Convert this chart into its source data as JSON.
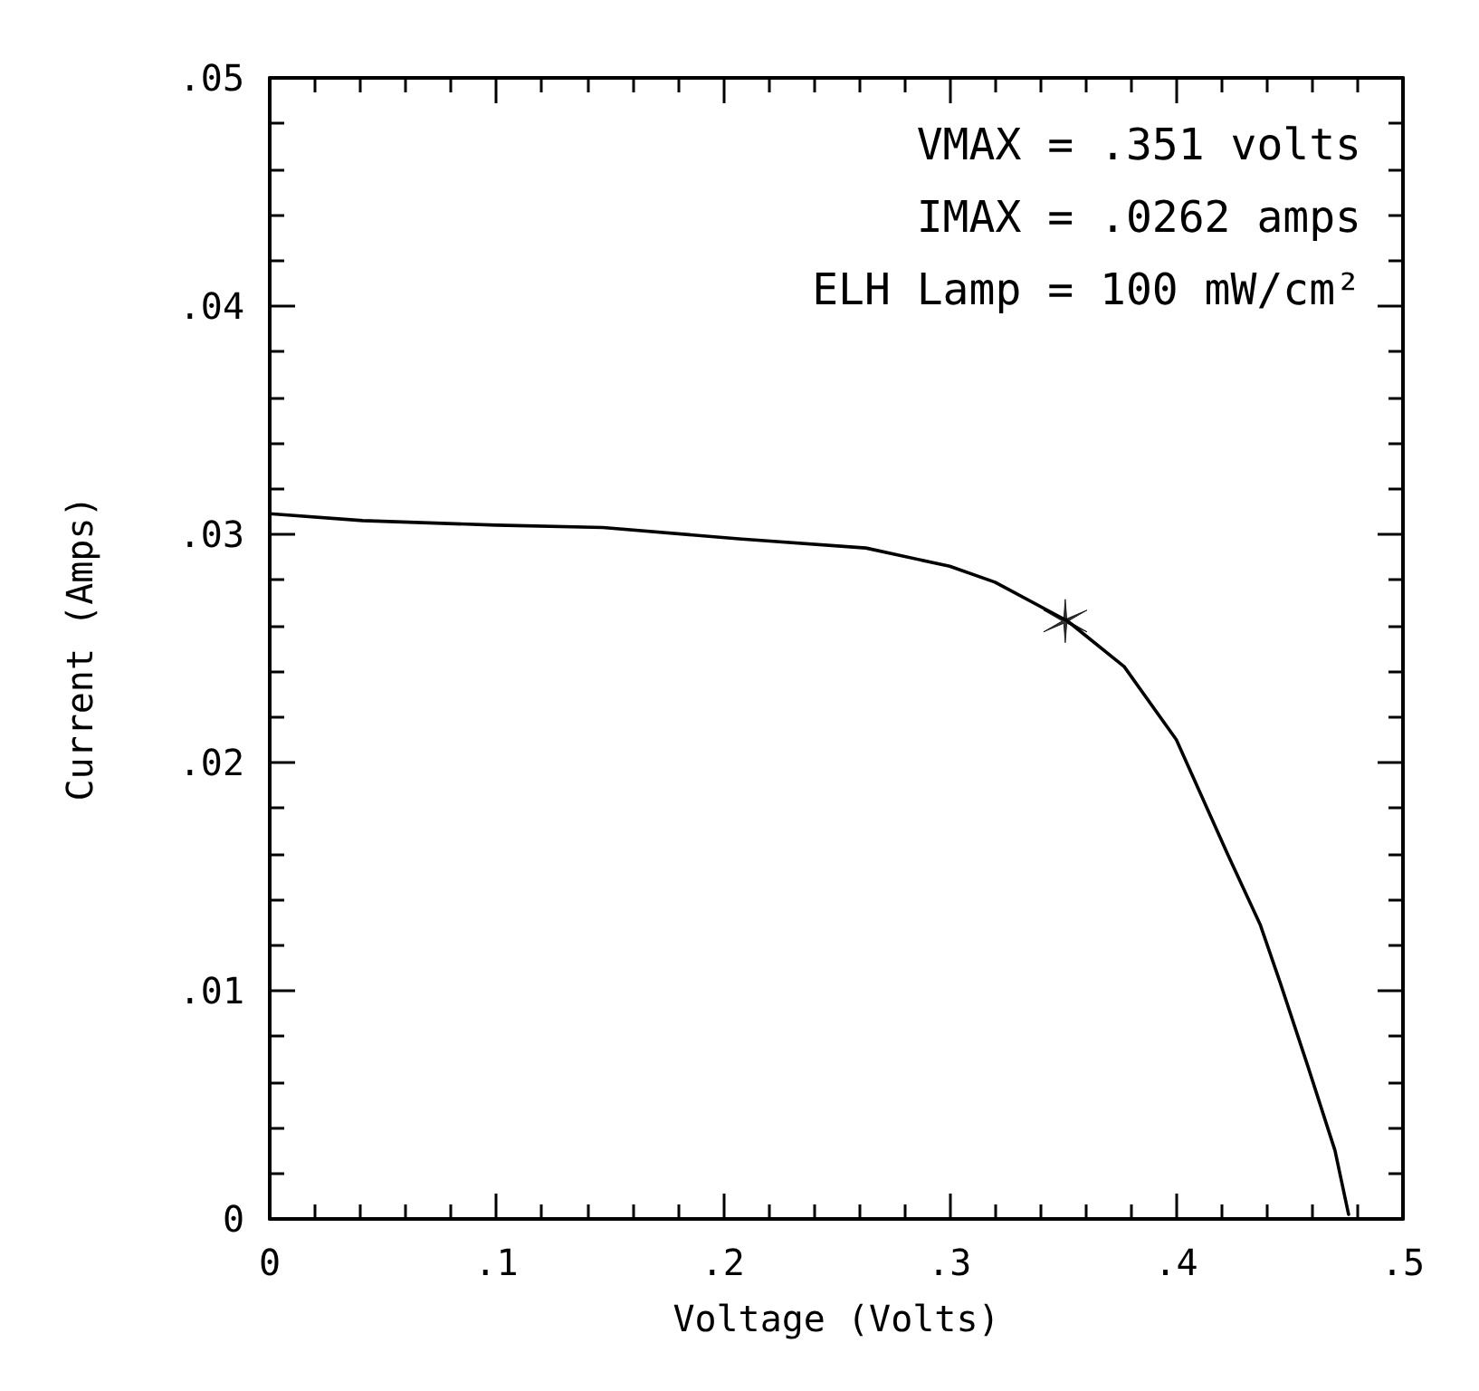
{
  "chart_data": {
    "type": "line",
    "xlabel": "Voltage (Volts)",
    "ylabel": "Current (Amps)",
    "annotations": [
      "VMAX = .351 volts",
      "IMAX = .0262 amps",
      "ELH Lamp = 100 mW/cm²"
    ],
    "series": [
      {
        "color": "#000000",
        "marker": "none",
        "x": [
          0,
          0.041,
          0.1,
          0.147,
          0.207,
          0.263,
          0.3,
          0.32,
          0.352,
          0.377,
          0.4,
          0.423,
          0.437,
          0.446,
          0.458,
          0.47,
          0.476
        ],
        "values": [
          0.0309,
          0.0306,
          0.0304,
          0.0303,
          0.0298,
          0.0294,
          0.0286,
          0.0279,
          0.0262,
          0.0242,
          0.021,
          0.0159,
          0.0129,
          0.0103,
          0.0067,
          0.003,
          0.0002
        ]
      },
      {
        "type": "scatter",
        "color": "#000000",
        "marker": "cross",
        "x": [
          0.351
        ],
        "values": [
          0.0262
        ]
      }
    ],
    "xlim": [
      0,
      0.5
    ],
    "ylim": [
      0,
      0.05
    ],
    "xticks": [
      {
        "value": 0,
        "label": "0"
      },
      {
        "value": 0.1,
        "label": ".1"
      },
      {
        "value": 0.2,
        "label": ".2"
      },
      {
        "value": 0.3,
        "label": ".3"
      },
      {
        "value": 0.4,
        "label": ".4"
      },
      {
        "value": 0.5,
        "label": ".5"
      }
    ],
    "yticks": [
      {
        "value": 0,
        "label": "0"
      },
      {
        "value": 0.01,
        "label": ".01"
      },
      {
        "value": 0.02,
        "label": ".02"
      },
      {
        "value": 0.03,
        "label": ".03"
      },
      {
        "value": 0.04,
        "label": ".04"
      },
      {
        "value": 0.05,
        "label": ".05"
      }
    ],
    "grid": false
  }
}
